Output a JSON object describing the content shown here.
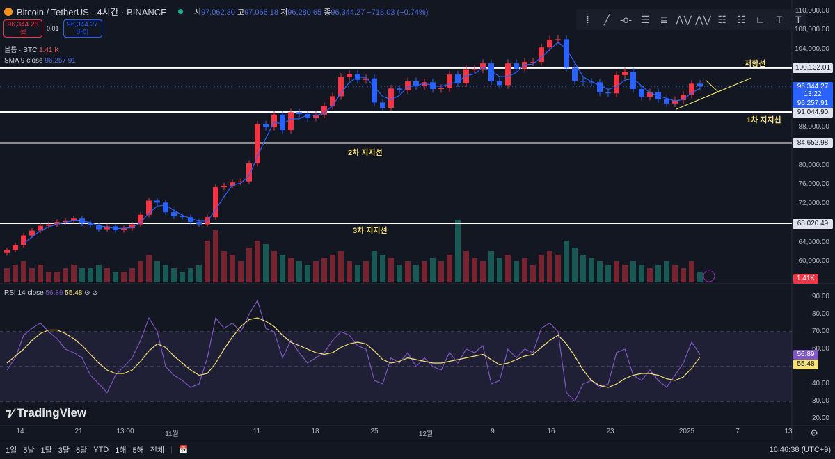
{
  "header": {
    "symbol": "Bitcoin / TetherUS · 4시간 · BINANCE",
    "open_label": "시",
    "open": "97,062.30",
    "high_label": "고",
    "high": "97,066.18",
    "low_label": "저",
    "low": "96,280.65",
    "close_label": "종",
    "close": "96,344.27",
    "change": "−718.03 (−0.74%)"
  },
  "trade": {
    "sell_price": "96,344.26",
    "sell_label": "셀",
    "spread": "0.01",
    "buy_price": "96,344.27",
    "buy_label": "바이"
  },
  "indicators": {
    "volume_label": "볼륨 · BTC",
    "volume_value": "1.41 K",
    "sma_label": "SMA 9 close",
    "sma_value": "96,257.91",
    "rsi_label": "RSI 14 close",
    "rsi_value": "56.89",
    "rsi_ma_value": "55.48"
  },
  "toolbar": [
    "drag-handle",
    "trend-line",
    "horizontal-ray",
    "parallel-channel",
    "fib-retracement",
    "xabcd-pattern",
    "abcd-pattern",
    "long-position",
    "short-position",
    "rectangle",
    "text",
    "anchored-text"
  ],
  "price_axis": [
    "110,000.00",
    "108,000.00",
    "104,000.00",
    "88,000.00",
    "80,000.00",
    "76,000.00",
    "72,000.00",
    "64,000.00",
    "60,000.00"
  ],
  "price_labels": {
    "resistance": "100,132.01",
    "support1": "91,044.90",
    "support2": "84,652.98",
    "support3": "68,020.49",
    "last": "96,344.27",
    "countdown": "13:22",
    "sma": "96,257.91",
    "volume": "1.41K"
  },
  "annotations": {
    "resistance": "저항선",
    "support1": "1차 지지선",
    "support2": "2차 지지선",
    "support3": "3차 지지선"
  },
  "rsi_axis": [
    "90.00",
    "80.00",
    "70.00",
    "60.00",
    "40.00",
    "30.00",
    "20.00"
  ],
  "rsi_labels": {
    "rsi": "56.89",
    "ma": "55.48"
  },
  "time_axis": [
    "14",
    "21",
    "13:00",
    "11월",
    "11",
    "18",
    "25",
    "12월",
    "9",
    "16",
    "23",
    "2025",
    "7",
    "13"
  ],
  "brand": "TradingView",
  "bottom": {
    "ranges": [
      "1일",
      "5날",
      "1달",
      "3달",
      "6달",
      "YTD",
      "1해",
      "5해",
      "전체"
    ],
    "clock": "16:46:38 (UTC+9)"
  },
  "colors": {
    "up": "#f23645",
    "down": "#2962ff",
    "sma": "#2962ff",
    "rsi": "#7e57c2",
    "rsi_ma": "#f5e07a",
    "levels": "#ffffff",
    "annotation": "#f5e07a"
  },
  "chart_data": {
    "type": "candlestick",
    "price_ylim": [
      58000,
      110000
    ],
    "levels": [
      100132.01,
      91044.9,
      84652.98,
      68020.49
    ],
    "closes": [
      62500,
      63500,
      65500,
      66500,
      67500,
      67800,
      68300,
      68500,
      69000,
      68000,
      67600,
      66800,
      67400,
      66600,
      67000,
      67800,
      69800,
      72700,
      72300,
      70300,
      69500,
      69300,
      68300,
      67800,
      69300,
      75500,
      75800,
      76500,
      76700,
      80400,
      88500,
      87900,
      90500,
      87300,
      91000,
      90600,
      89800,
      90500,
      92300,
      94300,
      98300,
      98900,
      97700,
      98000,
      93000,
      91900,
      95900,
      95600,
      97400,
      96400,
      97200,
      95800,
      96000,
      98800,
      97000,
      99900,
      99900,
      101100,
      97400,
      96600,
      101100,
      100000,
      101400,
      101400,
      104400,
      106000,
      106100,
      100200,
      97500,
      97300,
      97200,
      95100,
      94900,
      98700,
      99400,
      95800,
      94200,
      95100,
      93700,
      92800,
      93500,
      94600,
      96900,
      96344
    ],
    "volumes": [
      4,
      5,
      6,
      4,
      5,
      3,
      3,
      4,
      5,
      4,
      4,
      5,
      4,
      3,
      3,
      4,
      6,
      8,
      6,
      5,
      4,
      3,
      4,
      5,
      12,
      15,
      9,
      8,
      6,
      10,
      12,
      11,
      9,
      8,
      7,
      6,
      5,
      6,
      7,
      8,
      9,
      6,
      5,
      6,
      9,
      8,
      7,
      5,
      6,
      5,
      6,
      7,
      6,
      8,
      18,
      9,
      7,
      6,
      9,
      7,
      8,
      6,
      7,
      5,
      8,
      9,
      8,
      12,
      10,
      8,
      7,
      6,
      5,
      6,
      5,
      6,
      5,
      4,
      5,
      6,
      5,
      4,
      6,
      3
    ],
    "rsi_ylim": [
      18,
      95
    ],
    "rsi_bands": [
      70,
      50,
      30
    ],
    "rsi": [
      48,
      55,
      68,
      72,
      75,
      70,
      66,
      60,
      58,
      55,
      45,
      40,
      35,
      45,
      50,
      55,
      65,
      78,
      70,
      50,
      45,
      42,
      38,
      40,
      55,
      78,
      72,
      75,
      70,
      80,
      88,
      72,
      70,
      55,
      65,
      58,
      52,
      55,
      58,
      65,
      70,
      68,
      62,
      60,
      42,
      40,
      55,
      52,
      58,
      50,
      55,
      50,
      48,
      58,
      52,
      60,
      58,
      62,
      40,
      42,
      60,
      55,
      60,
      58,
      72,
      75,
      70,
      35,
      30,
      40,
      42,
      38,
      40,
      58,
      60,
      45,
      42,
      48,
      42,
      38,
      45,
      52,
      64,
      56.89
    ],
    "rsi_ma": [
      52,
      56,
      60,
      65,
      69,
      71,
      71,
      69,
      66,
      62,
      57,
      52,
      48,
      46,
      46,
      48,
      53,
      59,
      63,
      61,
      56,
      52,
      48,
      45,
      46,
      52,
      60,
      67,
      73,
      77,
      78,
      76,
      73,
      68,
      64,
      62,
      60,
      58,
      57,
      58,
      61,
      63,
      64,
      63,
      59,
      54,
      52,
      53,
      55,
      54,
      53,
      52,
      52,
      53,
      54,
      55,
      56,
      57,
      54,
      51,
      52,
      54,
      56,
      57,
      61,
      65,
      68,
      63,
      56,
      48,
      42,
      39,
      38,
      40,
      43,
      45,
      46,
      46,
      45,
      43,
      42,
      44,
      49,
      55.48
    ]
  }
}
